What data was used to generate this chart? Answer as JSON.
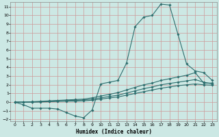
{
  "xlabel": "Humidex (Indice chaleur)",
  "bg_color": "#cce8e4",
  "grid_color": "#cc9999",
  "line_color": "#2d6e6e",
  "xlim": [
    -0.5,
    23.5
  ],
  "ylim": [
    -2.2,
    11.5
  ],
  "xticks": [
    0,
    1,
    2,
    3,
    4,
    5,
    6,
    7,
    8,
    9,
    10,
    11,
    12,
    13,
    14,
    15,
    16,
    17,
    18,
    19,
    20,
    21,
    22,
    23
  ],
  "yticks": [
    -2,
    -1,
    0,
    1,
    2,
    3,
    4,
    5,
    6,
    7,
    8,
    9,
    10,
    11
  ],
  "line1_x": [
    0,
    1,
    2,
    3,
    4,
    5,
    6,
    7,
    8,
    9,
    10,
    11,
    12,
    13,
    14,
    15,
    16,
    17,
    18,
    19,
    20,
    21,
    22,
    23
  ],
  "line1_y": [
    0,
    -0.3,
    -0.7,
    -0.7,
    -0.7,
    -0.8,
    -1.2,
    -1.6,
    -1.8,
    -0.9,
    2.1,
    2.3,
    2.5,
    4.5,
    8.7,
    9.8,
    10.0,
    11.3,
    11.2,
    7.8,
    4.4,
    3.6,
    3.4,
    2.5
  ],
  "line2_x": [
    0,
    1,
    2,
    3,
    4,
    5,
    6,
    7,
    8,
    9,
    10,
    11,
    12,
    13,
    14,
    15,
    16,
    17,
    18,
    19,
    20,
    21,
    22,
    23
  ],
  "line2_y": [
    0,
    0.0,
    0.05,
    0.1,
    0.15,
    0.2,
    0.25,
    0.3,
    0.35,
    0.5,
    0.7,
    0.9,
    1.1,
    1.4,
    1.7,
    2.0,
    2.2,
    2.5,
    2.7,
    2.9,
    3.1,
    3.4,
    2.2,
    2.2
  ],
  "line3_x": [
    0,
    1,
    2,
    3,
    4,
    5,
    6,
    7,
    8,
    9,
    10,
    11,
    12,
    13,
    14,
    15,
    16,
    17,
    18,
    19,
    20,
    21,
    22,
    23
  ],
  "line3_y": [
    0,
    0.0,
    0.02,
    0.05,
    0.1,
    0.15,
    0.2,
    0.22,
    0.25,
    0.35,
    0.5,
    0.65,
    0.8,
    1.05,
    1.3,
    1.55,
    1.75,
    2.0,
    2.15,
    2.3,
    2.45,
    2.6,
    2.3,
    2.1
  ],
  "line4_x": [
    0,
    1,
    2,
    3,
    4,
    5,
    6,
    7,
    8,
    9,
    10,
    11,
    12,
    13,
    14,
    15,
    16,
    17,
    18,
    19,
    20,
    21,
    22,
    23
  ],
  "line4_y": [
    0,
    0.0,
    0.0,
    0.02,
    0.05,
    0.08,
    0.1,
    0.12,
    0.15,
    0.22,
    0.35,
    0.48,
    0.6,
    0.8,
    1.0,
    1.2,
    1.4,
    1.6,
    1.75,
    1.9,
    2.0,
    2.1,
    2.0,
    1.95
  ]
}
